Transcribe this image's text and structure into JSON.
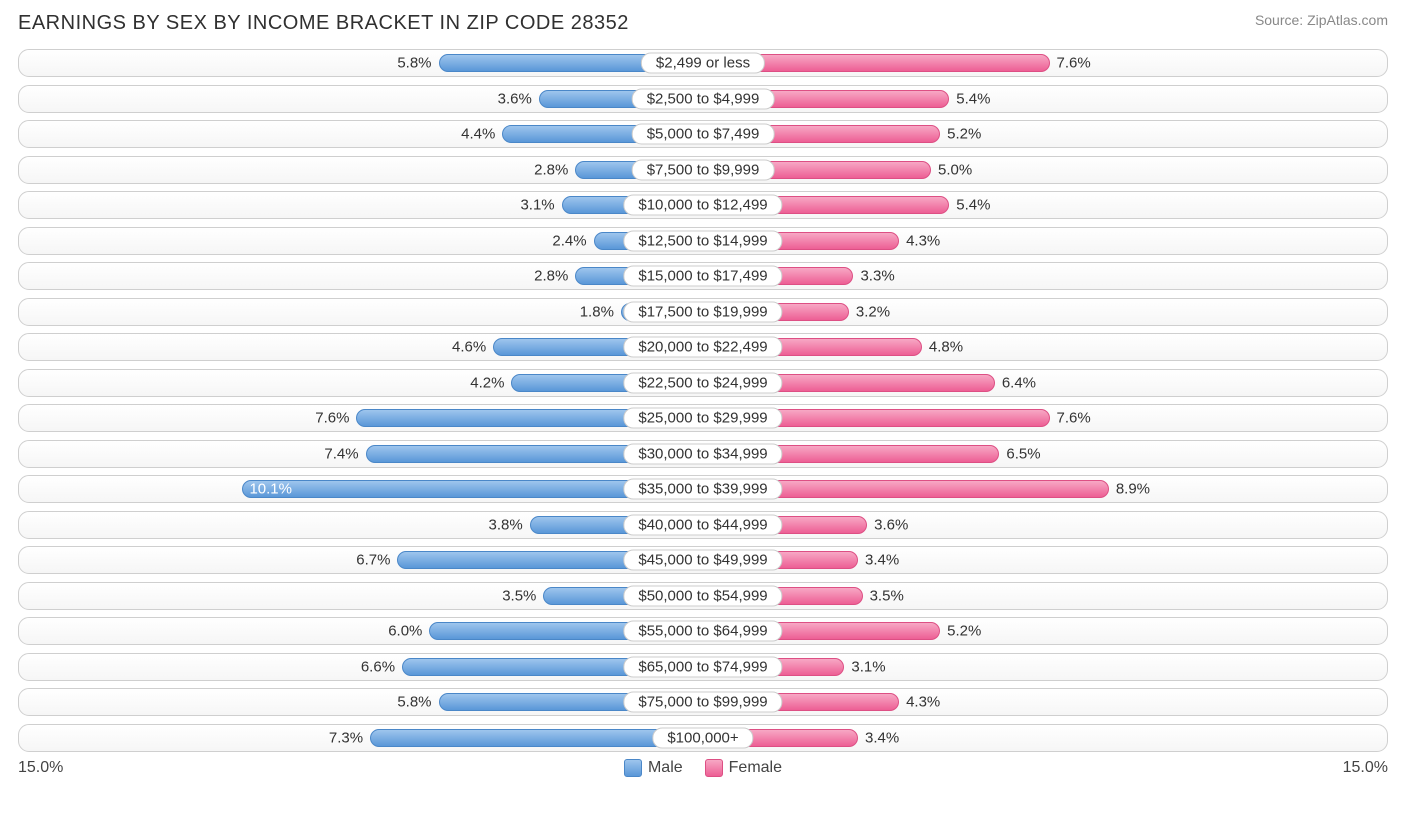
{
  "title": "EARNINGS BY SEX BY INCOME BRACKET IN ZIP CODE 28352",
  "source": "Source: ZipAtlas.com",
  "axis_max": 15.0,
  "axis_left_label": "15.0%",
  "axis_right_label": "15.0%",
  "legend": {
    "male": "Male",
    "female": "Female"
  },
  "colors": {
    "male_top": "#9ec5ed",
    "male_bottom": "#5a97d8",
    "male_border": "#4a87c8",
    "female_top": "#f7a8c4",
    "female_bottom": "#ed5f94",
    "female_border": "#dd4f84",
    "row_border": "#cfcfcf",
    "text": "#333333",
    "title": "#303030",
    "source": "#888888",
    "background": "#ffffff"
  },
  "rows": [
    {
      "label": "$2,499 or less",
      "male": 5.8,
      "female": 7.6,
      "male_inside": false
    },
    {
      "label": "$2,500 to $4,999",
      "male": 3.6,
      "female": 5.4,
      "male_inside": false
    },
    {
      "label": "$5,000 to $7,499",
      "male": 4.4,
      "female": 5.2,
      "male_inside": false
    },
    {
      "label": "$7,500 to $9,999",
      "male": 2.8,
      "female": 5.0,
      "male_inside": false
    },
    {
      "label": "$10,000 to $12,499",
      "male": 3.1,
      "female": 5.4,
      "male_inside": false
    },
    {
      "label": "$12,500 to $14,999",
      "male": 2.4,
      "female": 4.3,
      "male_inside": false
    },
    {
      "label": "$15,000 to $17,499",
      "male": 2.8,
      "female": 3.3,
      "male_inside": false
    },
    {
      "label": "$17,500 to $19,999",
      "male": 1.8,
      "female": 3.2,
      "male_inside": false
    },
    {
      "label": "$20,000 to $22,499",
      "male": 4.6,
      "female": 4.8,
      "male_inside": false
    },
    {
      "label": "$22,500 to $24,999",
      "male": 4.2,
      "female": 6.4,
      "male_inside": false
    },
    {
      "label": "$25,000 to $29,999",
      "male": 7.6,
      "female": 7.6,
      "male_inside": false
    },
    {
      "label": "$30,000 to $34,999",
      "male": 7.4,
      "female": 6.5,
      "male_inside": false
    },
    {
      "label": "$35,000 to $39,999",
      "male": 10.1,
      "female": 8.9,
      "male_inside": true
    },
    {
      "label": "$40,000 to $44,999",
      "male": 3.8,
      "female": 3.6,
      "male_inside": false
    },
    {
      "label": "$45,000 to $49,999",
      "male": 6.7,
      "female": 3.4,
      "male_inside": false
    },
    {
      "label": "$50,000 to $54,999",
      "male": 3.5,
      "female": 3.5,
      "male_inside": false
    },
    {
      "label": "$55,000 to $64,999",
      "male": 6.0,
      "female": 5.2,
      "male_inside": false
    },
    {
      "label": "$65,000 to $74,999",
      "male": 6.6,
      "female": 3.1,
      "male_inside": false
    },
    {
      "label": "$75,000 to $99,999",
      "male": 5.8,
      "female": 4.3,
      "male_inside": false
    },
    {
      "label": "$100,000+",
      "male": 7.3,
      "female": 3.4,
      "male_inside": false
    }
  ]
}
